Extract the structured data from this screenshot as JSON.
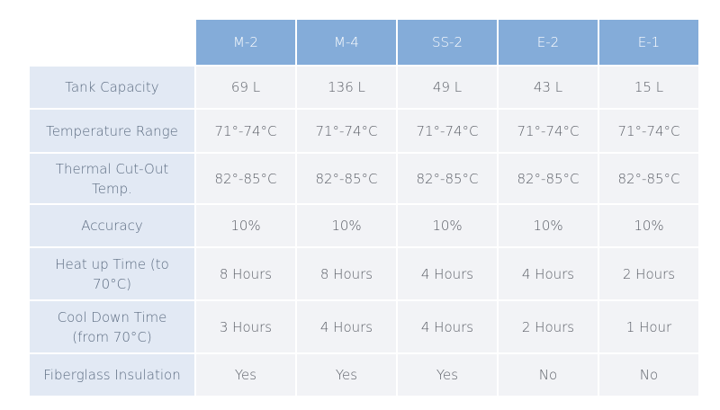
{
  "table": {
    "header": [
      "M-2",
      "M-4",
      "SS-2",
      "E-2",
      "E-1"
    ],
    "rows": [
      {
        "label": "Tank Capacity",
        "cells": [
          "69 L",
          "136 L",
          "49 L",
          "43 L",
          "15 L"
        ]
      },
      {
        "label": "Temperature Range",
        "cells": [
          "71°-74°C",
          "71°-74°C",
          "71°-74°C",
          "71°-74°C",
          "71°-74°C"
        ]
      },
      {
        "label": "Thermal Cut-Out Temp.",
        "cells": [
          "82°-85°C",
          "82°-85°C",
          "82°-85°C",
          "82°-85°C",
          "82°-85°C"
        ]
      },
      {
        "label": "Accuracy",
        "cells": [
          "10%",
          "10%",
          "10%",
          "10%",
          "10%"
        ]
      },
      {
        "label": "Heat up Time (to 70°C)",
        "cells": [
          "8 Hours",
          "8 Hours",
          "4 Hours",
          "4 Hours",
          "2 Hours"
        ]
      },
      {
        "label": "Cool Down Time (from 70°C)",
        "cells": [
          "3 Hours",
          "4 Hours",
          "4 Hours",
          "2 Hours",
          "1 Hour"
        ]
      },
      {
        "label": "Fiberglass Insulation",
        "cells": [
          "Yes",
          "Yes",
          "Yes",
          "No",
          "No"
        ]
      }
    ]
  }
}
